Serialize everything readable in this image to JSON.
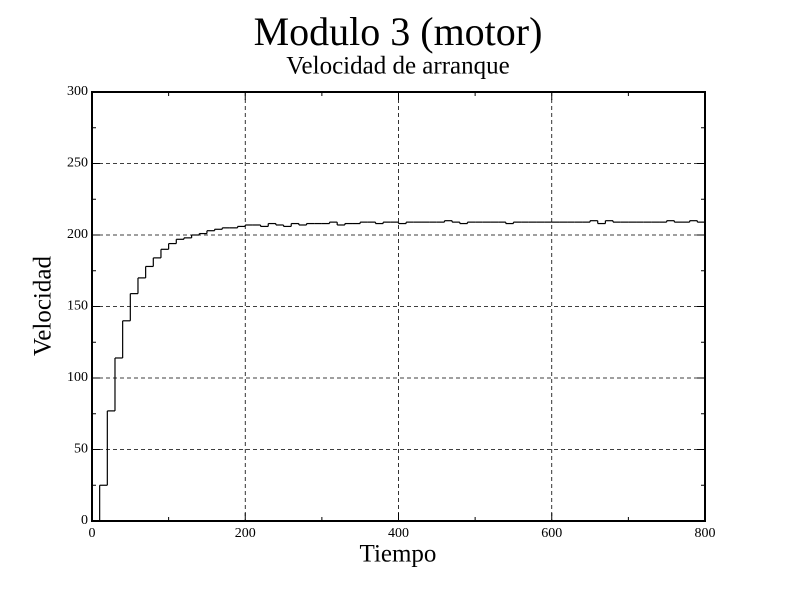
{
  "chart_data": {
    "type": "step",
    "title": "Modulo 3 (motor)",
    "subtitle": "Velocidad de arranque",
    "x_label": "Tiempo",
    "y_label": "Velocidad",
    "x": [
      0,
      10,
      20,
      30,
      40,
      50,
      60,
      70,
      80,
      90,
      100,
      110,
      120,
      130,
      140,
      150,
      160,
      170,
      180,
      190,
      200,
      210,
      220,
      230,
      240,
      250,
      260,
      270,
      280,
      290,
      300,
      310,
      320,
      330,
      340,
      350,
      360,
      370,
      380,
      390,
      400,
      410,
      420,
      430,
      440,
      450,
      460,
      470,
      480,
      490,
      500,
      510,
      520,
      530,
      540,
      550,
      560,
      570,
      580,
      590,
      600,
      610,
      620,
      630,
      640,
      650,
      660,
      670,
      680,
      690,
      700,
      710,
      720,
      730,
      740,
      750,
      760,
      770,
      780,
      790,
      800
    ],
    "values": [
      0,
      25,
      77,
      114,
      140,
      159,
      170,
      178,
      184,
      190,
      194,
      197,
      198,
      200,
      201,
      203,
      204,
      205,
      205,
      206,
      207,
      207,
      206,
      208,
      207,
      206,
      208,
      207,
      208,
      208,
      208,
      209,
      207,
      208,
      208,
      209,
      209,
      208,
      209,
      209,
      208,
      209,
      209,
      209,
      209,
      209,
      210,
      209,
      208,
      209,
      209,
      209,
      209,
      209,
      208,
      209,
      209,
      209,
      209,
      209,
      209,
      209,
      209,
      209,
      209,
      210,
      208,
      210,
      209,
      209,
      209,
      209,
      209,
      209,
      209,
      210,
      209,
      209,
      210,
      209,
      209
    ],
    "color": "#000000",
    "xlim": [
      0,
      800
    ],
    "ylim": [
      0,
      300
    ],
    "xticks": [
      0,
      200,
      400,
      600,
      800
    ],
    "yticks": [
      0,
      50,
      100,
      150,
      200,
      250,
      300
    ],
    "grid": true
  }
}
